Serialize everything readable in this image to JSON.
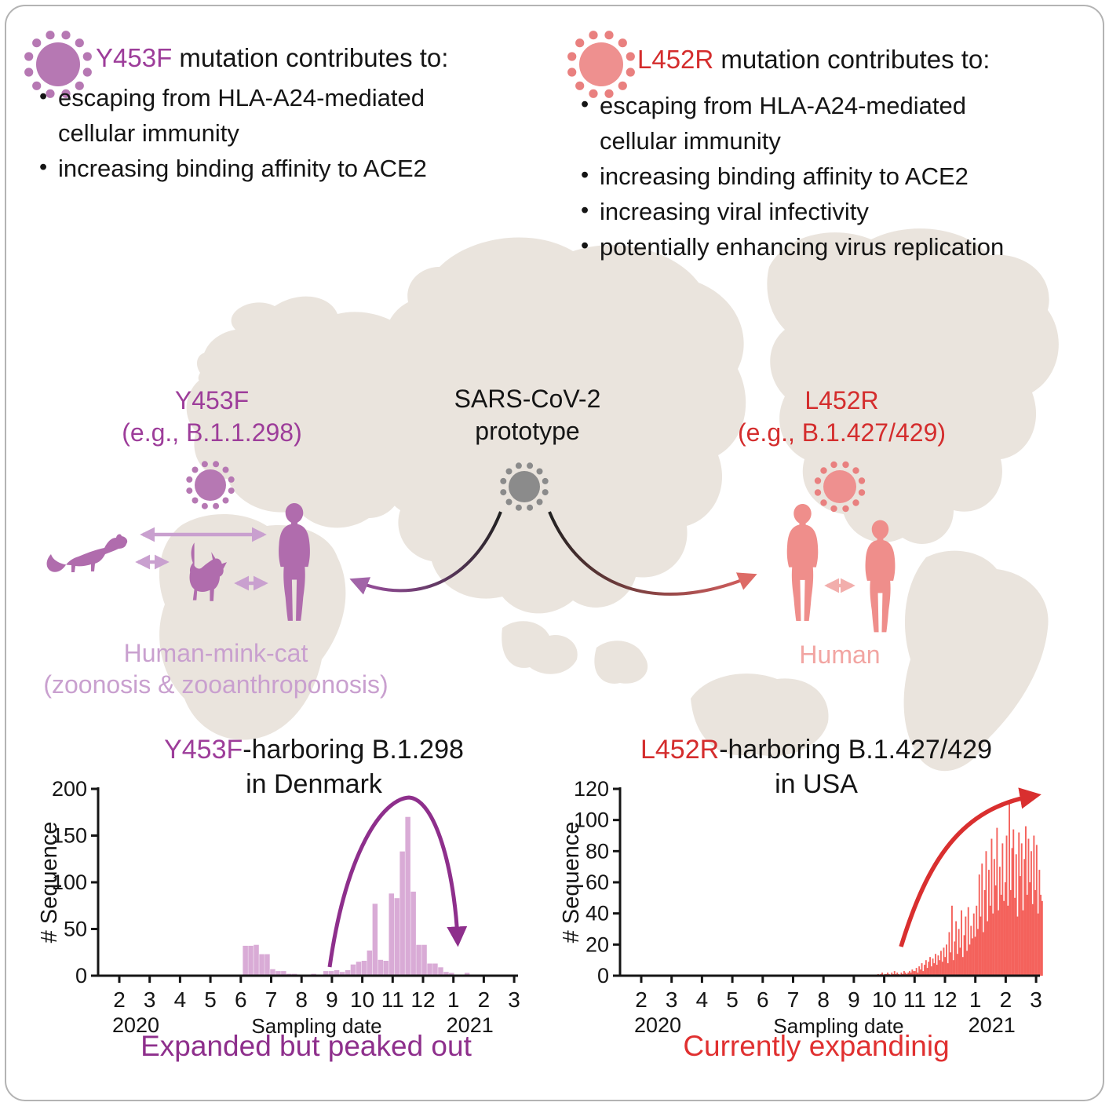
{
  "panels": {
    "left": {
      "mutation": "Y453F",
      "title_rest": " mutation contributes to:",
      "bullet_char": "•",
      "bullets": [
        [
          "escaping from HLA-A24-mediated",
          "cellular immunity"
        ],
        [
          "increasing binding affinity to ACE2"
        ]
      ]
    },
    "right": {
      "mutation": "L452R",
      "title_rest": " mutation contributes to:",
      "bullet_char": "•",
      "bullets": [
        [
          "escaping from HLA-A24-mediated",
          "cellular immunity"
        ],
        [
          "increasing binding affinity to ACE2"
        ],
        [
          "increasing viral infectivity"
        ],
        [
          "potentially enhancing virus replication"
        ]
      ]
    }
  },
  "map": {
    "left_variant_line1": "Y453F",
    "left_variant_line2": "(e.g., B.1.1.298)",
    "center_line1": "SARS-CoV-2",
    "center_line2": "prototype",
    "right_variant_line1": "L452R",
    "right_variant_line2": "(e.g., B.1.427/429)",
    "left_hosts_line1": "Human-mink-cat",
    "left_hosts_line2": "(zoonosis & zooanthroponosis)",
    "right_hosts": "Human"
  },
  "captions": {
    "left": "Expanded but peaked out",
    "right": "Currently expandinig"
  },
  "colors": {
    "purple_text": "#9d3d9a",
    "purple_caption": "#8e2f8c",
    "purple_virus": "#b678b3",
    "purple_figure": "#b06cad",
    "purple_light": "#c9a0cf",
    "purple_bars": "#d9abd6",
    "red_text": "#d42d2d",
    "red_caption": "#e03030",
    "pink_virus": "#ee908f",
    "pink_virus_spike": "#e9807f",
    "pink_figure": "#ef8e8b",
    "pink_light": "#f2aeac",
    "red_bars": "#f4625c",
    "red_arrow": "#d92f2f",
    "gray_virus": "#8b8b8b",
    "map_fill": "#eae4dd",
    "text_black": "#151515"
  },
  "chart_data": [
    {
      "type": "bar",
      "region_title_highlight": "Y453F",
      "region_title_rest": "-harboring B.1.298",
      "region_title_line2": "in Denmark",
      "ylabel": "# Sequence",
      "xlabel": "Sampling date",
      "x_ticks": [
        "2",
        "3",
        "4",
        "5",
        "6",
        "7",
        "8",
        "9",
        "10",
        "11",
        "12",
        "1",
        "2",
        "3"
      ],
      "year_labels": [
        {
          "text": "2020",
          "tick_index": 0
        },
        {
          "text": "2021",
          "tick_index": 11
        }
      ],
      "y_ticks": [
        0,
        50,
        100,
        150,
        200
      ],
      "ylim": [
        0,
        200
      ],
      "bars_unit": "x = month tick index, 0 = Feb 2020; y = # sequences per sampling period",
      "bars": [
        [
          4.15,
          32
        ],
        [
          4.33,
          32
        ],
        [
          4.51,
          33
        ],
        [
          4.69,
          23
        ],
        [
          4.87,
          23
        ],
        [
          5.05,
          7
        ],
        [
          5.23,
          5
        ],
        [
          5.41,
          5
        ],
        [
          5.59,
          2
        ],
        [
          5.77,
          2
        ],
        [
          5.95,
          1
        ],
        [
          6.4,
          2
        ],
        [
          6.8,
          5
        ],
        [
          6.98,
          5
        ],
        [
          7.16,
          6
        ],
        [
          7.34,
          4
        ],
        [
          7.52,
          6
        ],
        [
          7.7,
          12
        ],
        [
          7.88,
          15
        ],
        [
          8.06,
          16
        ],
        [
          8.24,
          27
        ],
        [
          8.42,
          77
        ],
        [
          8.6,
          17
        ],
        [
          8.78,
          16
        ],
        [
          8.96,
          88
        ],
        [
          9.14,
          83
        ],
        [
          9.32,
          133
        ],
        [
          9.5,
          170
        ],
        [
          9.68,
          90
        ],
        [
          9.86,
          33
        ],
        [
          10.04,
          33
        ],
        [
          10.22,
          13
        ],
        [
          10.4,
          13
        ],
        [
          10.58,
          9
        ],
        [
          10.76,
          4
        ],
        [
          10.94,
          3
        ],
        [
          11.45,
          3
        ]
      ],
      "annotation": "purple rise-and-fall arc arrow over peak",
      "caption": "Expanded but peaked out"
    },
    {
      "type": "bar",
      "region_title_highlight": "L452R",
      "region_title_rest": "-harboring B.1.427/429",
      "region_title_line2": "in USA",
      "ylabel": "# Sequence",
      "xlabel": "Sampling date",
      "x_ticks": [
        "2",
        "3",
        "4",
        "5",
        "6",
        "7",
        "8",
        "9",
        "10",
        "11",
        "12",
        "1",
        "2",
        "3"
      ],
      "year_labels": [
        {
          "text": "2020",
          "tick_index": 0
        },
        {
          "text": "2021",
          "tick_index": 11
        }
      ],
      "y_ticks": [
        0,
        20,
        40,
        60,
        80,
        100,
        120
      ],
      "ylim": [
        0,
        120
      ],
      "bars_unit": "daily counts, x start = month tick index 7.8 (late Sep 2020), step 0.045",
      "bars_start": 7.8,
      "bars_step": 0.045,
      "values": [
        1,
        0,
        1,
        2,
        0,
        1,
        1,
        2,
        1,
        0,
        2,
        1,
        3,
        1,
        2,
        1,
        0,
        2,
        1,
        3,
        2,
        1,
        2,
        3,
        2,
        4,
        3,
        3,
        5,
        2,
        6,
        4,
        8,
        3,
        7,
        10,
        5,
        9,
        12,
        6,
        11,
        8,
        14,
        7,
        13,
        10,
        16,
        9,
        18,
        12,
        20,
        8,
        28,
        15,
        45,
        10,
        22,
        35,
        14,
        30,
        18,
        42,
        12,
        26,
        38,
        16,
        44,
        20,
        32,
        24,
        40,
        25,
        45,
        30,
        65,
        38,
        72,
        28,
        55,
        80,
        35,
        68,
        45,
        88,
        40,
        75,
        58,
        95,
        42,
        70,
        52,
        85,
        48,
        60,
        90,
        45,
        111,
        55,
        82,
        94,
        50,
        78,
        38,
        92,
        64,
        85,
        42,
        75,
        96,
        52,
        88,
        60,
        80,
        46,
        90,
        55,
        84,
        40,
        68,
        52,
        48
      ],
      "annotation": "red rising arrow",
      "caption": "Currently expandinig"
    }
  ]
}
